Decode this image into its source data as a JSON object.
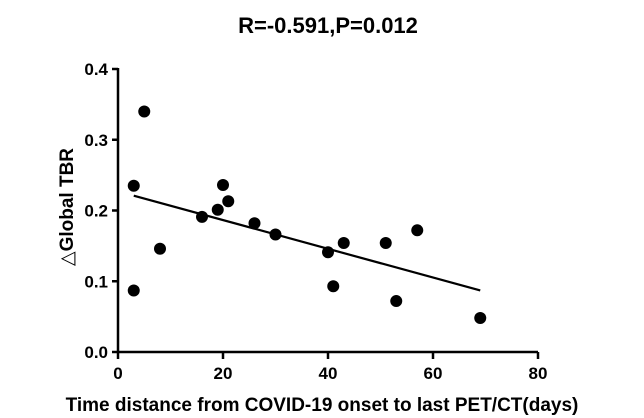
{
  "chart_data": {
    "type": "scatter",
    "title": "R=-0.591,P=0.012",
    "xlabel": "Time distance from COVID-19 onset to last PET/CT(days)",
    "ylabel": "△Global TBR",
    "xlim": [
      0,
      80
    ],
    "ylim": [
      0,
      0.4
    ],
    "x_ticks": [
      "0",
      "20",
      "40",
      "60",
      "80"
    ],
    "y_ticks": [
      "0.0",
      "0.1",
      "0.2",
      "0.3",
      "0.4"
    ],
    "grid": false,
    "legend": "none",
    "colors": {
      "points": "#000000",
      "line": "#000000",
      "axes": "#000000"
    },
    "points": [
      {
        "x": 3,
        "y": 0.235
      },
      {
        "x": 3,
        "y": 0.087
      },
      {
        "x": 5,
        "y": 0.34
      },
      {
        "x": 8,
        "y": 0.146
      },
      {
        "x": 16,
        "y": 0.191
      },
      {
        "x": 19,
        "y": 0.201
      },
      {
        "x": 20,
        "y": 0.236
      },
      {
        "x": 21,
        "y": 0.213
      },
      {
        "x": 26,
        "y": 0.182
      },
      {
        "x": 30,
        "y": 0.166
      },
      {
        "x": 40,
        "y": 0.141
      },
      {
        "x": 41,
        "y": 0.093
      },
      {
        "x": 43,
        "y": 0.154
      },
      {
        "x": 51,
        "y": 0.154
      },
      {
        "x": 53,
        "y": 0.072
      },
      {
        "x": 57,
        "y": 0.172
      },
      {
        "x": 69,
        "y": 0.048
      }
    ],
    "regression_line": {
      "x": [
        3,
        69
      ],
      "y": [
        0.221,
        0.087
      ]
    }
  }
}
